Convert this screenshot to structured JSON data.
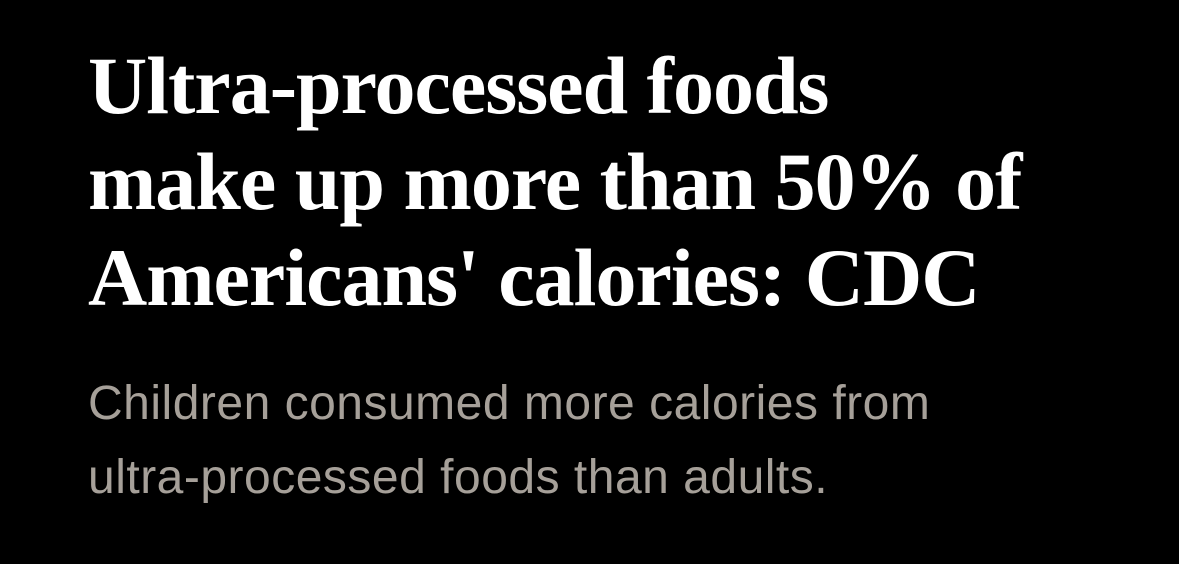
{
  "page": {
    "background_color": "#000000"
  },
  "article": {
    "headline": {
      "text": "Ultra-processed foods make up more than 50% of Americans' calories: CDC",
      "lines": [
        "Ultra-processed foods",
        "make up more than 50% of",
        "Americans' calories: CDC"
      ],
      "color": "#ffffff"
    },
    "subheadline": {
      "text": "Children consumed more calories from ultra-processed foods than adults.",
      "lines": [
        "Children consumed more calories from",
        "ultra-processed foods than adults."
      ],
      "color": "#a6a099"
    }
  }
}
